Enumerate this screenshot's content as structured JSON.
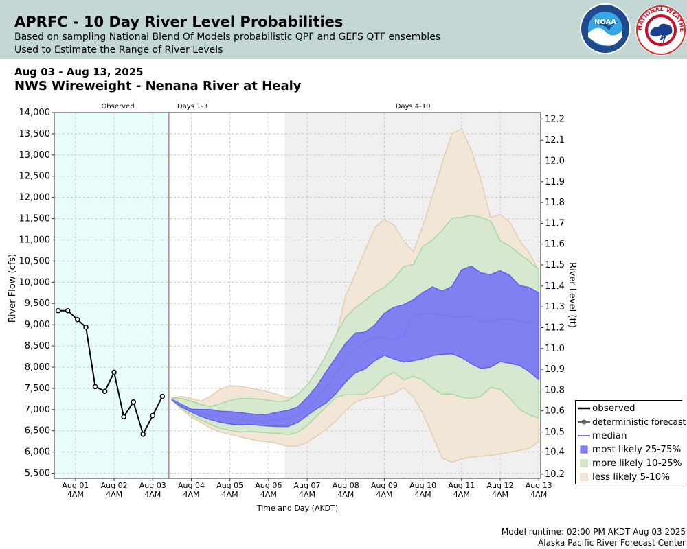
{
  "header": {
    "title": "APRFC - 10 Day River Level Probabilities",
    "subtitle_1": "Based on sampling National Blend Of Models probabilistic QPF and GEFS QTF ensembles",
    "subtitle_2": "Used to Estimate the Range of River Levels"
  },
  "logos": {
    "noaa": "NOAA",
    "nws": "NATIONAL WEATHER SERVICE"
  },
  "date_range": "Aug 03 - Aug 13, 2025",
  "station": "NWS Wireweight - Nenana River at Healy",
  "footer": {
    "runtime": "Model runtime: 02:00 PM AKDT Aug 03 2025",
    "center": "Alaska Pacific River Forecast Center"
  },
  "colors": {
    "observed_bg": "#e9fcfc",
    "days4_10_bg": "#f0f0f0",
    "cut_line": "#cc3333",
    "band_5_10": "#f2e6d7",
    "band_5_10_edge": "#e6cdb0",
    "band_10_25": "#d6e8d0",
    "band_10_25_edge": "#a8d8a0",
    "band_25_75": "#8080f2",
    "band_25_75_edge": "#6060ee",
    "median": "#7a7af0",
    "observed": "#000000"
  },
  "chart_data": {
    "type": "area",
    "title": "",
    "xlabel": "Time and Day (AKDT)",
    "ylabel": "River Flow (cfs)",
    "y2label": "River Level (ft)",
    "ylim": [
      5380,
      14000
    ],
    "yticks": [
      5500,
      6000,
      6500,
      7000,
      7500,
      8000,
      8500,
      9000,
      9500,
      10000,
      10500,
      11000,
      11500,
      12000,
      12500,
      13000,
      13500,
      14000
    ],
    "ytick_labels": [
      "5,500",
      "6,000",
      "6,500",
      "7,000",
      "7,500",
      "8,000",
      "8,500",
      "9,000",
      "9,500",
      "10,000",
      "10,500",
      "11,000",
      "11,500",
      "12,000",
      "12,500",
      "13,000",
      "13,500",
      "14,000"
    ],
    "y2_ticks": [
      {
        "label": "10.2",
        "flow": 5480
      },
      {
        "label": "10.4",
        "flow": 6000
      },
      {
        "label": "10.5",
        "flow": 6470
      },
      {
        "label": "10.6",
        "flow": 6970
      },
      {
        "label": "10.8",
        "flow": 7460
      },
      {
        "label": "10.9",
        "flow": 7950
      },
      {
        "label": "11.0",
        "flow": 8440
      },
      {
        "label": "11.2",
        "flow": 8930
      },
      {
        "label": "11.3",
        "flow": 9420
      },
      {
        "label": "11.4",
        "flow": 9910
      },
      {
        "label": "11.5",
        "flow": 10410
      },
      {
        "label": "11.6",
        "flow": 10900
      },
      {
        "label": "11.7",
        "flow": 11390
      },
      {
        "label": "11.8",
        "flow": 11880
      },
      {
        "label": "11.9",
        "flow": 12370
      },
      {
        "label": "12.0",
        "flow": 12860
      },
      {
        "label": "12.1",
        "flow": 13350
      },
      {
        "label": "12.2",
        "flow": 13850
      }
    ],
    "xlim": [
      -0.55,
      12.05
    ],
    "x_units": "days from Aug 01 4AM AKDT",
    "xticks": [
      {
        "x": 0,
        "day": "Aug 01",
        "hour": "4AM"
      },
      {
        "x": 1,
        "day": "Aug 02",
        "hour": "4AM"
      },
      {
        "x": 2,
        "day": "Aug 03",
        "hour": "4AM"
      },
      {
        "x": 3,
        "day": "Aug 04",
        "hour": "4AM"
      },
      {
        "x": 4,
        "day": "Aug 05",
        "hour": "4AM"
      },
      {
        "x": 5,
        "day": "Aug 06",
        "hour": "4AM"
      },
      {
        "x": 6,
        "day": "Aug 07",
        "hour": "4AM"
      },
      {
        "x": 7,
        "day": "Aug 08",
        "hour": "4AM"
      },
      {
        "x": 8,
        "day": "Aug 09",
        "hour": "4AM"
      },
      {
        "x": 9,
        "day": "Aug 10",
        "hour": "4AM"
      },
      {
        "x": 10,
        "day": "Aug 11",
        "hour": "4AM"
      },
      {
        "x": 11,
        "day": "Aug 12",
        "hour": "4AM"
      },
      {
        "x": 12,
        "day": "Aug 13",
        "hour": "4AM"
      }
    ],
    "regions": [
      {
        "label": "Observed",
        "x_start": -0.55,
        "x_end": 2.42
      },
      {
        "label": "Days 1-3",
        "x_start": 2.42,
        "x_end": 5.42
      },
      {
        "label": "Days 4-10",
        "x_start": 5.42,
        "x_end": 12.05
      }
    ],
    "forecast_start": 2.42,
    "observed": {
      "x": [
        -0.45,
        -0.2,
        0.05,
        0.27,
        0.51,
        0.76,
        1.0,
        1.25,
        1.5,
        1.75,
        2.0,
        2.25
      ],
      "y": [
        9330,
        9330,
        9120,
        8940,
        7540,
        7430,
        7880,
        6830,
        7180,
        6420,
        6860,
        7310
      ]
    },
    "forecast_x": [
      2.5,
      2.75,
      3.0,
      3.25,
      3.5,
      3.75,
      4.0,
      4.25,
      4.5,
      4.75,
      5.0,
      5.25,
      5.5,
      5.75,
      6.0,
      6.25,
      6.5,
      6.75,
      7.0,
      7.25,
      7.5,
      7.75,
      8.0,
      8.25,
      8.5,
      8.75,
      9.0,
      9.25,
      9.5,
      9.75,
      10.0,
      10.25,
      10.5,
      10.75,
      11.0,
      11.25,
      11.5,
      11.75,
      12.0
    ],
    "series": [
      {
        "name": "less likely 5-10%",
        "lower": [
          7220,
          7000,
          6820,
          6700,
          6560,
          6470,
          6420,
          6360,
          6310,
          6260,
          6240,
          6200,
          6130,
          6140,
          6230,
          6380,
          6540,
          6730,
          6980,
          7180,
          7260,
          7290,
          7320,
          7380,
          7520,
          7300,
          6900,
          6380,
          5850,
          5760,
          5830,
          5880,
          5900,
          5920,
          5960,
          6000,
          6040,
          6080,
          6250
        ],
        "upper": [
          7280,
          7310,
          7260,
          7200,
          7320,
          7480,
          7560,
          7550,
          7510,
          7470,
          7420,
          7350,
          7270,
          7330,
          7530,
          7800,
          8150,
          8720,
          9680,
          10200,
          10750,
          11280,
          11480,
          11350,
          10980,
          10720,
          11330,
          12050,
          12820,
          13500,
          13620,
          13120,
          12420,
          11530,
          11600,
          11420,
          10990,
          10700,
          10280
        ]
      },
      {
        "name": "more likely 10-25%",
        "lower": [
          7220,
          7030,
          6880,
          6760,
          6650,
          6560,
          6510,
          6470,
          6480,
          6470,
          6450,
          6440,
          6410,
          6460,
          6620,
          6850,
          7070,
          7290,
          7350,
          7350,
          7360,
          7520,
          7760,
          7880,
          7700,
          7780,
          7700,
          7500,
          7360,
          7370,
          7290,
          7260,
          7310,
          7520,
          7480,
          7270,
          7000,
          6880,
          6800
        ],
        "upper": [
          7270,
          7260,
          7200,
          7120,
          7070,
          7140,
          7210,
          7260,
          7260,
          7250,
          7220,
          7190,
          7210,
          7350,
          7570,
          7900,
          8300,
          8770,
          9180,
          9400,
          9570,
          9760,
          9880,
          10090,
          10370,
          10420,
          10850,
          11000,
          11230,
          11510,
          11530,
          11580,
          11530,
          11450,
          10980,
          10850,
          10670,
          10500,
          10300
        ]
      },
      {
        "name": "most likely 25-75%",
        "lower": [
          7220,
          7060,
          6940,
          6840,
          6760,
          6700,
          6660,
          6640,
          6650,
          6630,
          6610,
          6600,
          6600,
          6690,
          6860,
          7020,
          7160,
          7380,
          7650,
          7870,
          7960,
          8150,
          8280,
          8190,
          8120,
          8150,
          8200,
          8270,
          8300,
          8310,
          8230,
          8080,
          7970,
          8000,
          8130,
          8090,
          8040,
          7900,
          7700
        ],
        "upper": [
          7240,
          7120,
          7010,
          7000,
          7000,
          6960,
          6950,
          6930,
          6900,
          6880,
          6890,
          6940,
          6980,
          7060,
          7280,
          7550,
          7900,
          8230,
          8560,
          8800,
          8820,
          8990,
          9270,
          9410,
          9470,
          9590,
          9760,
          9890,
          9790,
          9900,
          10290,
          10380,
          10220,
          10180,
          10270,
          10160,
          9920,
          9880,
          9750
        ]
      },
      {
        "name": "median",
        "values": [
          7230,
          7100,
          6980,
          6910,
          6860,
          6830,
          6790,
          6770,
          6740,
          6720,
          6730,
          6770,
          6780,
          6840,
          7020,
          7250,
          7540,
          7860,
          8180,
          8400,
          8590,
          8710,
          8700,
          8620,
          8760,
          9230,
          9270,
          9270,
          9230,
          9180,
          9190,
          9200,
          9060,
          9070,
          9140,
          9130,
          9080,
          9050,
          9000
        ]
      }
    ],
    "legend": {
      "position": "bottom-right",
      "items": [
        "observed",
        "deterministic forecast",
        "median",
        "most likely 25-75%",
        "more likely 10-25%",
        "less likely 5-10%"
      ]
    }
  }
}
